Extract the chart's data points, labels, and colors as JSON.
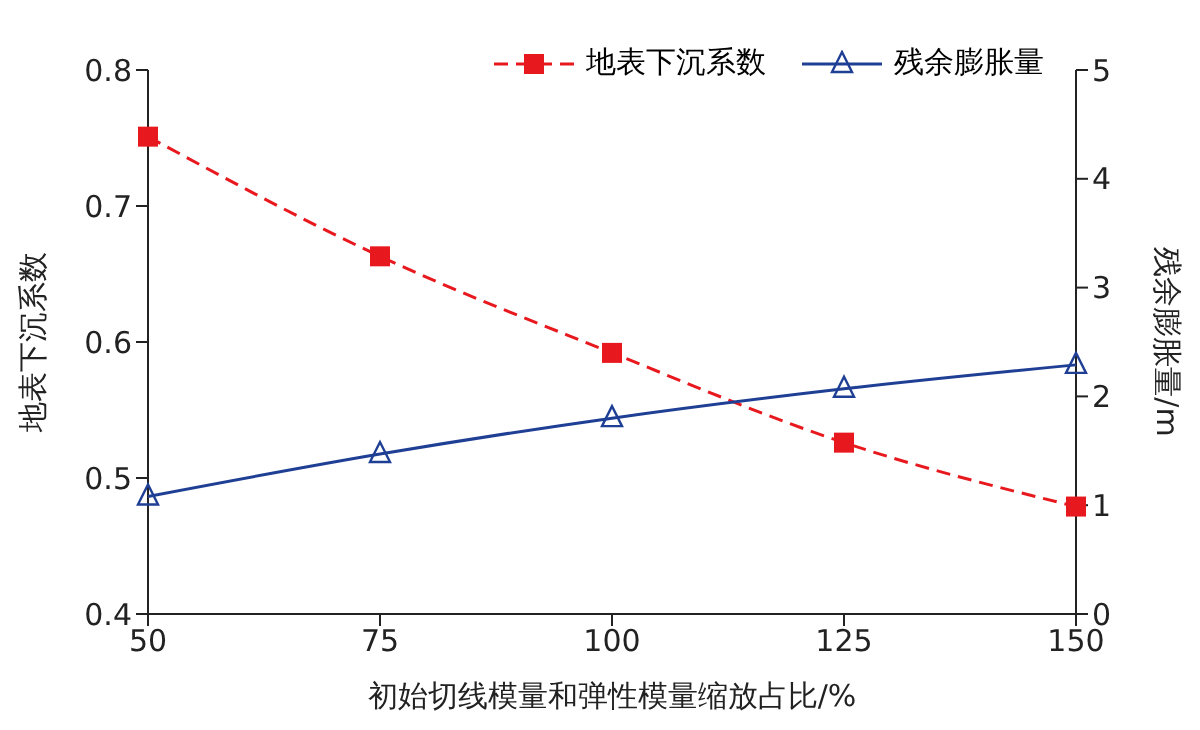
{
  "chart_data": {
    "type": "line",
    "xlabel": "初始切线模量和弹性模量缩放占比/%",
    "ylabel": "地表下沉系数",
    "y2label": "残余膨胀量/m",
    "x": [
      50,
      75,
      100,
      125,
      150
    ],
    "xlim": [
      50,
      150
    ],
    "xticks": [
      50,
      75,
      100,
      125,
      150
    ],
    "ylim": [
      0.4,
      0.8
    ],
    "yticks": [
      0.4,
      0.5,
      0.6,
      0.7,
      0.8
    ],
    "y2lim": [
      0,
      5
    ],
    "y2ticks": [
      0,
      1,
      2,
      3,
      4,
      5
    ],
    "grid": false,
    "legend": "top right",
    "series": [
      {
        "name": "地表下沉系数",
        "color": "#e8191e",
        "values": [
          0.751,
          0.663,
          0.592,
          0.526,
          0.479
        ],
        "marker": "square",
        "line_style": "dashed"
      },
      {
        "name": "残余膨胀量",
        "color": "#1f3f95",
        "values": [
          1.08,
          1.47,
          1.8,
          2.07,
          2.29
        ],
        "axis": "y2",
        "marker": "triangle",
        "line_style": "solid"
      }
    ]
  }
}
